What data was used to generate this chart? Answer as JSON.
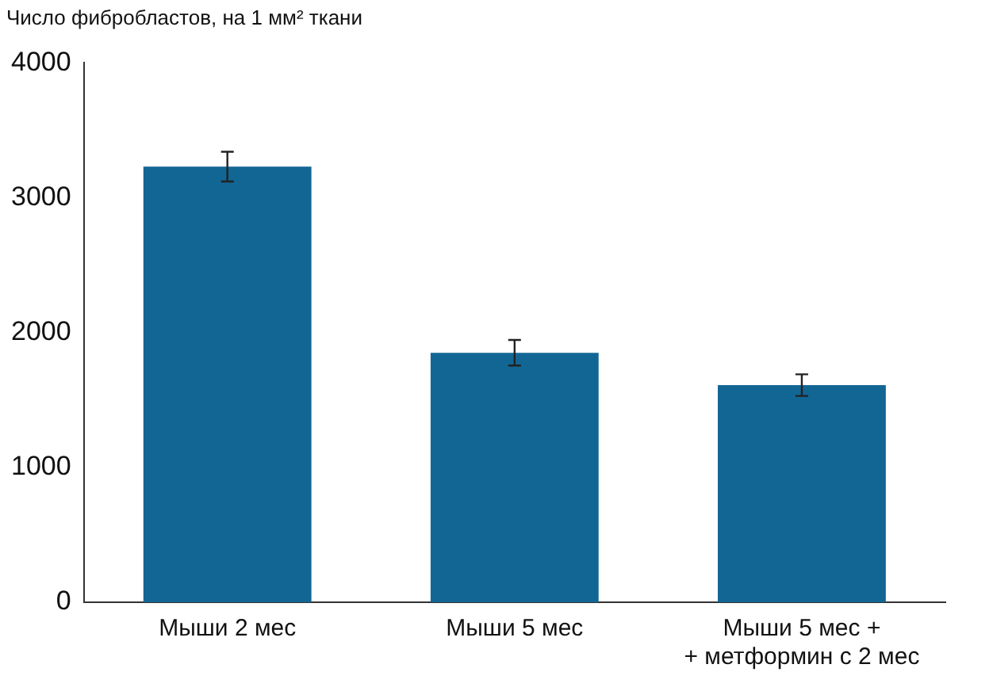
{
  "chart_data": {
    "type": "bar",
    "ylabel": "Число фибробластов, на 1 мм² ткани",
    "categories": [
      "Мыши 2 мес",
      "Мыши 5 мес",
      "Мыши 5 мес +\n+ метформин с 2 мес"
    ],
    "values": [
      3230,
      1850,
      1610
    ],
    "errors": [
      110,
      95,
      80
    ],
    "color": "#126694",
    "ylim": [
      0,
      4000
    ],
    "yticks": [
      0,
      1000,
      2000,
      3000,
      4000
    ],
    "grid": false,
    "legend": false
  }
}
